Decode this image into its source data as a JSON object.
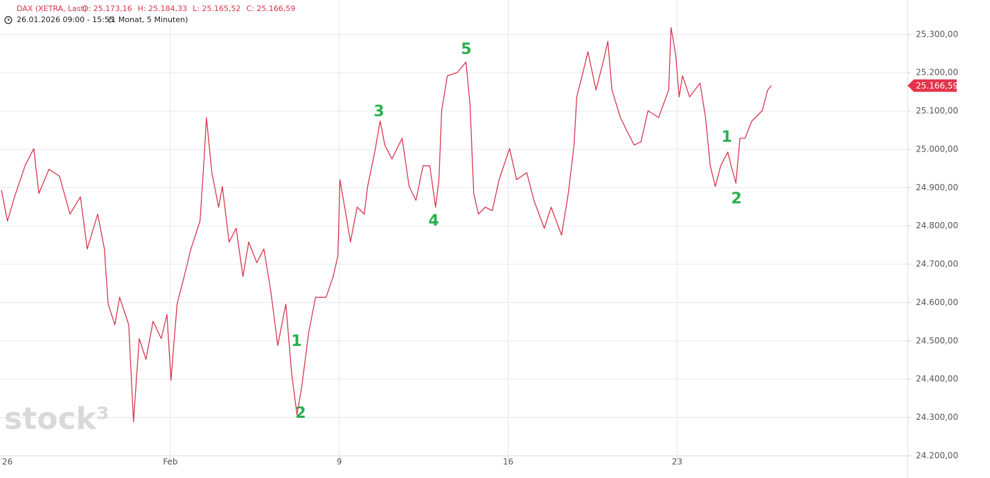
{
  "chart_data": {
    "type": "line",
    "title": "DAX (XETRA, Last)",
    "ohlc": [
      "O: 25.173,16",
      "H: 25.184,33",
      "L: 25.165,52",
      "C: 25.166,59"
    ],
    "subtitle": "26.01.2026 09:00 - 15:55",
    "interval": "(1 Monat, 5 Minuten)",
    "watermark": "stock³",
    "color": "#d6364e",
    "grid": true,
    "x": [
      0.0,
      0.18,
      0.39,
      0.7,
      0.96,
      1.11,
      1.41,
      1.72,
      2.03,
      2.34,
      2.54,
      2.85,
      3.05,
      3.16,
      3.36,
      3.5,
      3.77,
      3.91,
      4.08,
      4.28,
      4.49,
      4.73,
      4.9,
      5.02,
      5.2,
      5.41,
      5.61,
      5.88,
      6.0,
      6.07,
      6.23,
      6.43,
      6.54,
      6.74,
      6.95,
      7.15,
      7.32,
      7.56,
      7.77,
      7.97,
      8.18,
      8.42,
      8.59,
      8.75,
      8.89,
      9.1,
      9.3,
      9.61,
      9.82,
      9.96,
      10.02,
      10.23,
      10.33,
      10.53,
      10.74,
      10.84,
      11.05,
      11.21,
      11.35,
      11.56,
      11.86,
      12.07,
      12.27,
      12.48,
      12.68,
      12.85,
      12.95,
      13.03,
      13.2,
      13.5,
      13.75,
      13.87,
      13.98,
      14.12,
      14.32,
      14.53,
      14.73,
      15.04,
      15.25,
      15.55,
      15.76,
      16.07,
      16.27,
      16.58,
      16.78,
      16.95,
      17.03,
      17.19,
      17.36,
      17.6,
      17.81,
      17.95,
      18.07,
      18.32,
      18.52,
      18.73,
      18.93,
      19.14,
      19.45,
      19.75,
      19.82,
      19.96,
      20.06,
      20.16,
      20.37,
      20.68,
      20.84,
      20.98,
      21.13,
      21.29,
      21.5,
      21.6,
      21.74,
      21.86,
      22.01,
      22.21,
      22.52,
      22.68,
      22.79
    ],
    "values": [
      24894,
      24813,
      24876,
      24957,
      25002,
      24885,
      24948,
      24930,
      24831,
      24876,
      24740,
      24831,
      24740,
      24596,
      24542,
      24614,
      24542,
      24289,
      24506,
      24452,
      24551,
      24506,
      24569,
      24397,
      24596,
      24668,
      24740,
      24813,
      24975,
      25083,
      24939,
      24849,
      24903,
      24758,
      24794,
      24668,
      24758,
      24704,
      24740,
      24632,
      24488,
      24596,
      24416,
      24307,
      24380,
      24524,
      24614,
      24614,
      24668,
      24722,
      24921,
      24813,
      24758,
      24849,
      24831,
      24903,
      24993,
      25074,
      25011,
      24975,
      25029,
      24903,
      24867,
      24957,
      24957,
      24849,
      24921,
      25101,
      25192,
      25201,
      25228,
      25119,
      24885,
      24831,
      24849,
      24840,
      24921,
      25002,
      24921,
      24939,
      24867,
      24794,
      24849,
      24776,
      24885,
      25011,
      25137,
      25192,
      25255,
      25155,
      25228,
      25282,
      25155,
      25083,
      25047,
      25011,
      25020,
      25101,
      25083,
      25155,
      25318,
      25246,
      25137,
      25192,
      25137,
      25173,
      25083,
      24957,
      24903,
      24957,
      24993,
      24957,
      24912,
      25029,
      25029,
      25074,
      25101,
      25155,
      25167
    ],
    "last_price": {
      "value": 25166.59,
      "label": "25.166,59"
    },
    "xlim": [
      -0.02,
      26.82
    ],
    "xticks": [
      {
        "value": 0,
        "label": "26"
      },
      {
        "value": 5,
        "label": "Feb"
      },
      {
        "value": 10,
        "label": "9"
      },
      {
        "value": 15,
        "label": "16"
      },
      {
        "value": 20,
        "label": "23"
      }
    ],
    "ylim": [
      24198,
      25390
    ],
    "yticks": [
      {
        "value": 24200,
        "label": "24.200,00"
      },
      {
        "value": 24300,
        "label": "24.300,00"
      },
      {
        "value": 24400,
        "label": "24.400,00"
      },
      {
        "value": 24500,
        "label": "24.500,00"
      },
      {
        "value": 24600,
        "label": "24.600,00"
      },
      {
        "value": 24700,
        "label": "24.700,00"
      },
      {
        "value": 24800,
        "label": "24.800,00"
      },
      {
        "value": 24900,
        "label": "24.900,00"
      },
      {
        "value": 25000,
        "label": "25.000,00"
      },
      {
        "value": 25100,
        "label": "25.100,00"
      },
      {
        "value": 25200,
        "label": "25.200,00"
      },
      {
        "value": 25300,
        "label": "25.300,00"
      }
    ],
    "annotations": [
      "1",
      "2",
      "3",
      "4",
      "5",
      "1",
      "2"
    ]
  }
}
